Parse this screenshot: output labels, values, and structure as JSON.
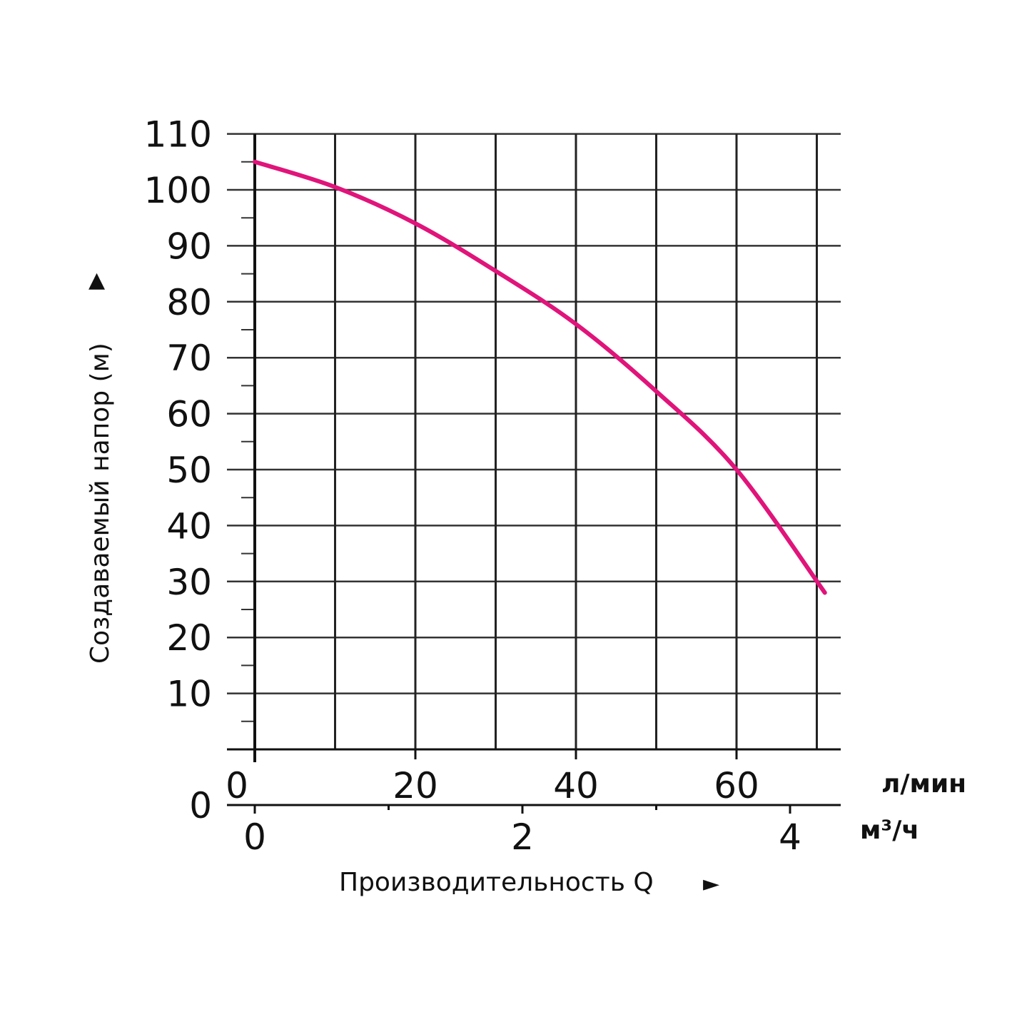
{
  "chart_data": {
    "type": "line",
    "ylabel": "Создаваемый напор (м)",
    "xlabel": "Производительность Q",
    "ylim": [
      0,
      110
    ],
    "yticks": [
      0,
      10,
      20,
      30,
      40,
      50,
      60,
      70,
      80,
      90,
      100,
      110
    ],
    "x_axis_primary": {
      "unit": "л/мин",
      "range": [
        0,
        70
      ],
      "ticks": [
        0,
        20,
        40,
        60
      ]
    },
    "x_axis_secondary": {
      "unit": "м³/ч",
      "range": [
        0,
        4.2
      ],
      "ticks": [
        0,
        2,
        4
      ]
    },
    "grid": true,
    "series": [
      {
        "color": "#e0147a",
        "x": [
          0,
          10,
          20,
          30,
          40,
          50,
          60,
          71
        ],
        "y": [
          105,
          100.5,
          94,
          85.5,
          76,
          64,
          50,
          28
        ]
      }
    ],
    "arrows": {
      "y": "▲",
      "x": "►"
    }
  }
}
